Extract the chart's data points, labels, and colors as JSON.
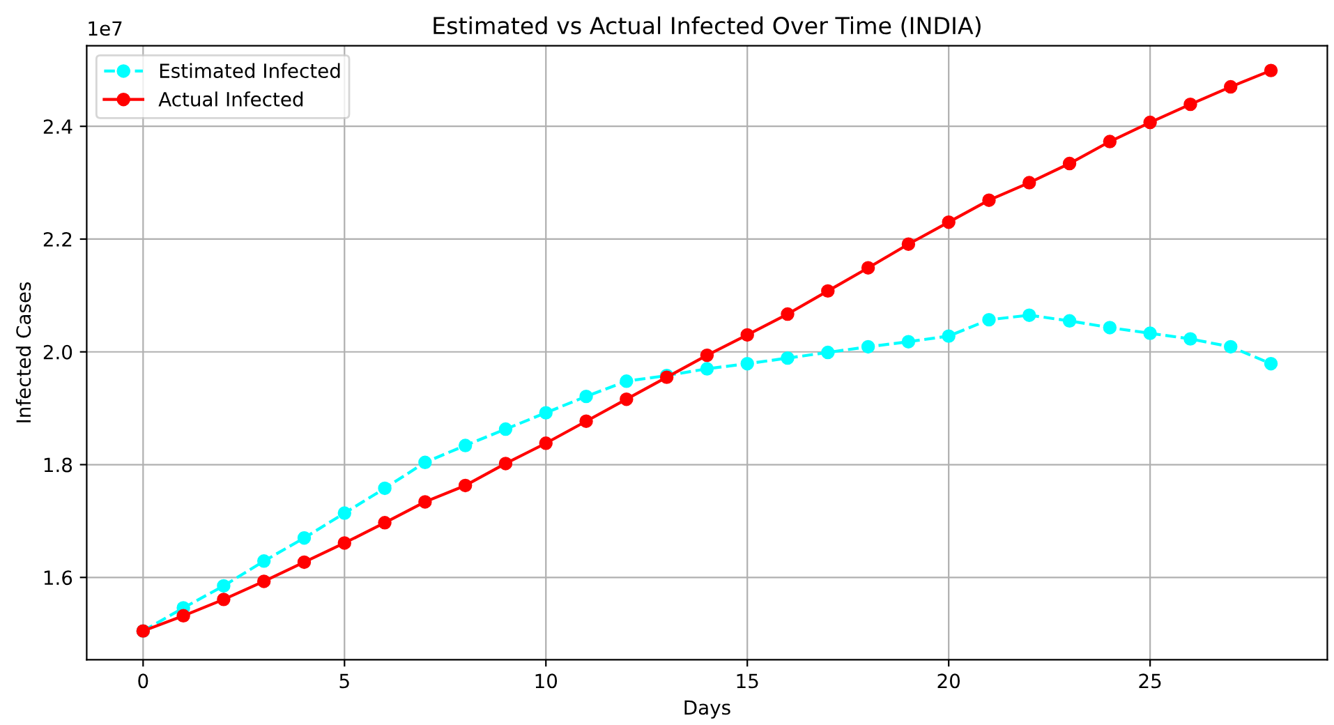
{
  "chart_data": {
    "type": "line",
    "title": "Estimated vs Actual Infected Over Time (INDIA)",
    "xlabel": "Days",
    "ylabel": "Infected Cases",
    "annotations": [
      "1e7"
    ],
    "x": [
      0,
      1,
      2,
      3,
      4,
      5,
      6,
      7,
      8,
      9,
      10,
      11,
      12,
      13,
      14,
      15,
      16,
      17,
      18,
      19,
      20,
      21,
      22,
      23,
      24,
      25,
      26,
      27,
      28
    ],
    "series": [
      {
        "name": "Estimated Infected",
        "color": "#00ffff",
        "line_style": "dashed",
        "values": [
          1.505,
          1.546,
          1.585,
          1.629,
          1.67,
          1.714,
          1.758,
          1.804,
          1.834,
          1.863,
          1.892,
          1.921,
          1.948,
          1.958,
          1.97,
          1.979,
          1.989,
          1.999,
          2.009,
          2.018,
          2.028,
          2.057,
          2.065,
          2.055,
          2.043,
          2.033,
          2.023,
          2.009,
          1.979
        ]
      },
      {
        "name": "Actual Infected",
        "color": "#ff0000",
        "line_style": "solid",
        "values": [
          1.505,
          1.532,
          1.561,
          1.593,
          1.627,
          1.661,
          1.697,
          1.734,
          1.763,
          1.802,
          1.838,
          1.877,
          1.916,
          1.955,
          1.994,
          2.03,
          2.067,
          2.108,
          2.149,
          2.191,
          2.23,
          2.269,
          2.3,
          2.334,
          2.373,
          2.407,
          2.439,
          2.47,
          2.499
        ]
      }
    ],
    "marker": "circle",
    "grid": true,
    "legend": "top left",
    "xlim": [
      -1.4,
      29.4
    ],
    "xticks": [
      0,
      5,
      10,
      15,
      20,
      25
    ],
    "ylim": [
      1.454,
      2.543
    ],
    "yticks": [
      1.6,
      1.8,
      {
        "value": 2.0,
        "label": "2.0"
      },
      2.2,
      2.4
    ]
  }
}
